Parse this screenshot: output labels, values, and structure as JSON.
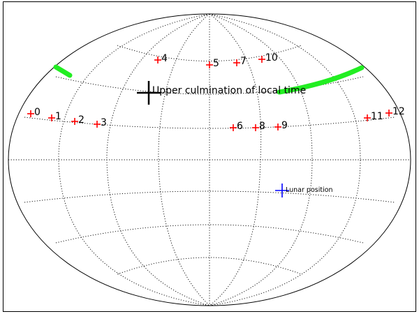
{
  "map": {
    "projection": "aitoff",
    "grid": true,
    "frame_color": "#000000",
    "grid_color": "#000000",
    "outline_color": "#000000"
  },
  "targets": [
    {
      "label": "0"
    },
    {
      "label": "1"
    },
    {
      "label": "2"
    },
    {
      "label": "3"
    },
    {
      "label": "4"
    },
    {
      "label": "5"
    },
    {
      "label": "6"
    },
    {
      "label": "7"
    },
    {
      "label": "8"
    },
    {
      "label": "9"
    },
    {
      "label": "10"
    },
    {
      "label": "11"
    },
    {
      "label": "12"
    }
  ],
  "target_color": "#ff0000",
  "upper_culmination": {
    "label": "Upper culmination of local time",
    "color": "#000000"
  },
  "lunar_position": {
    "label": "Lunar position",
    "color": "#0000ff"
  },
  "track": {
    "color": "#22ee22"
  }
}
